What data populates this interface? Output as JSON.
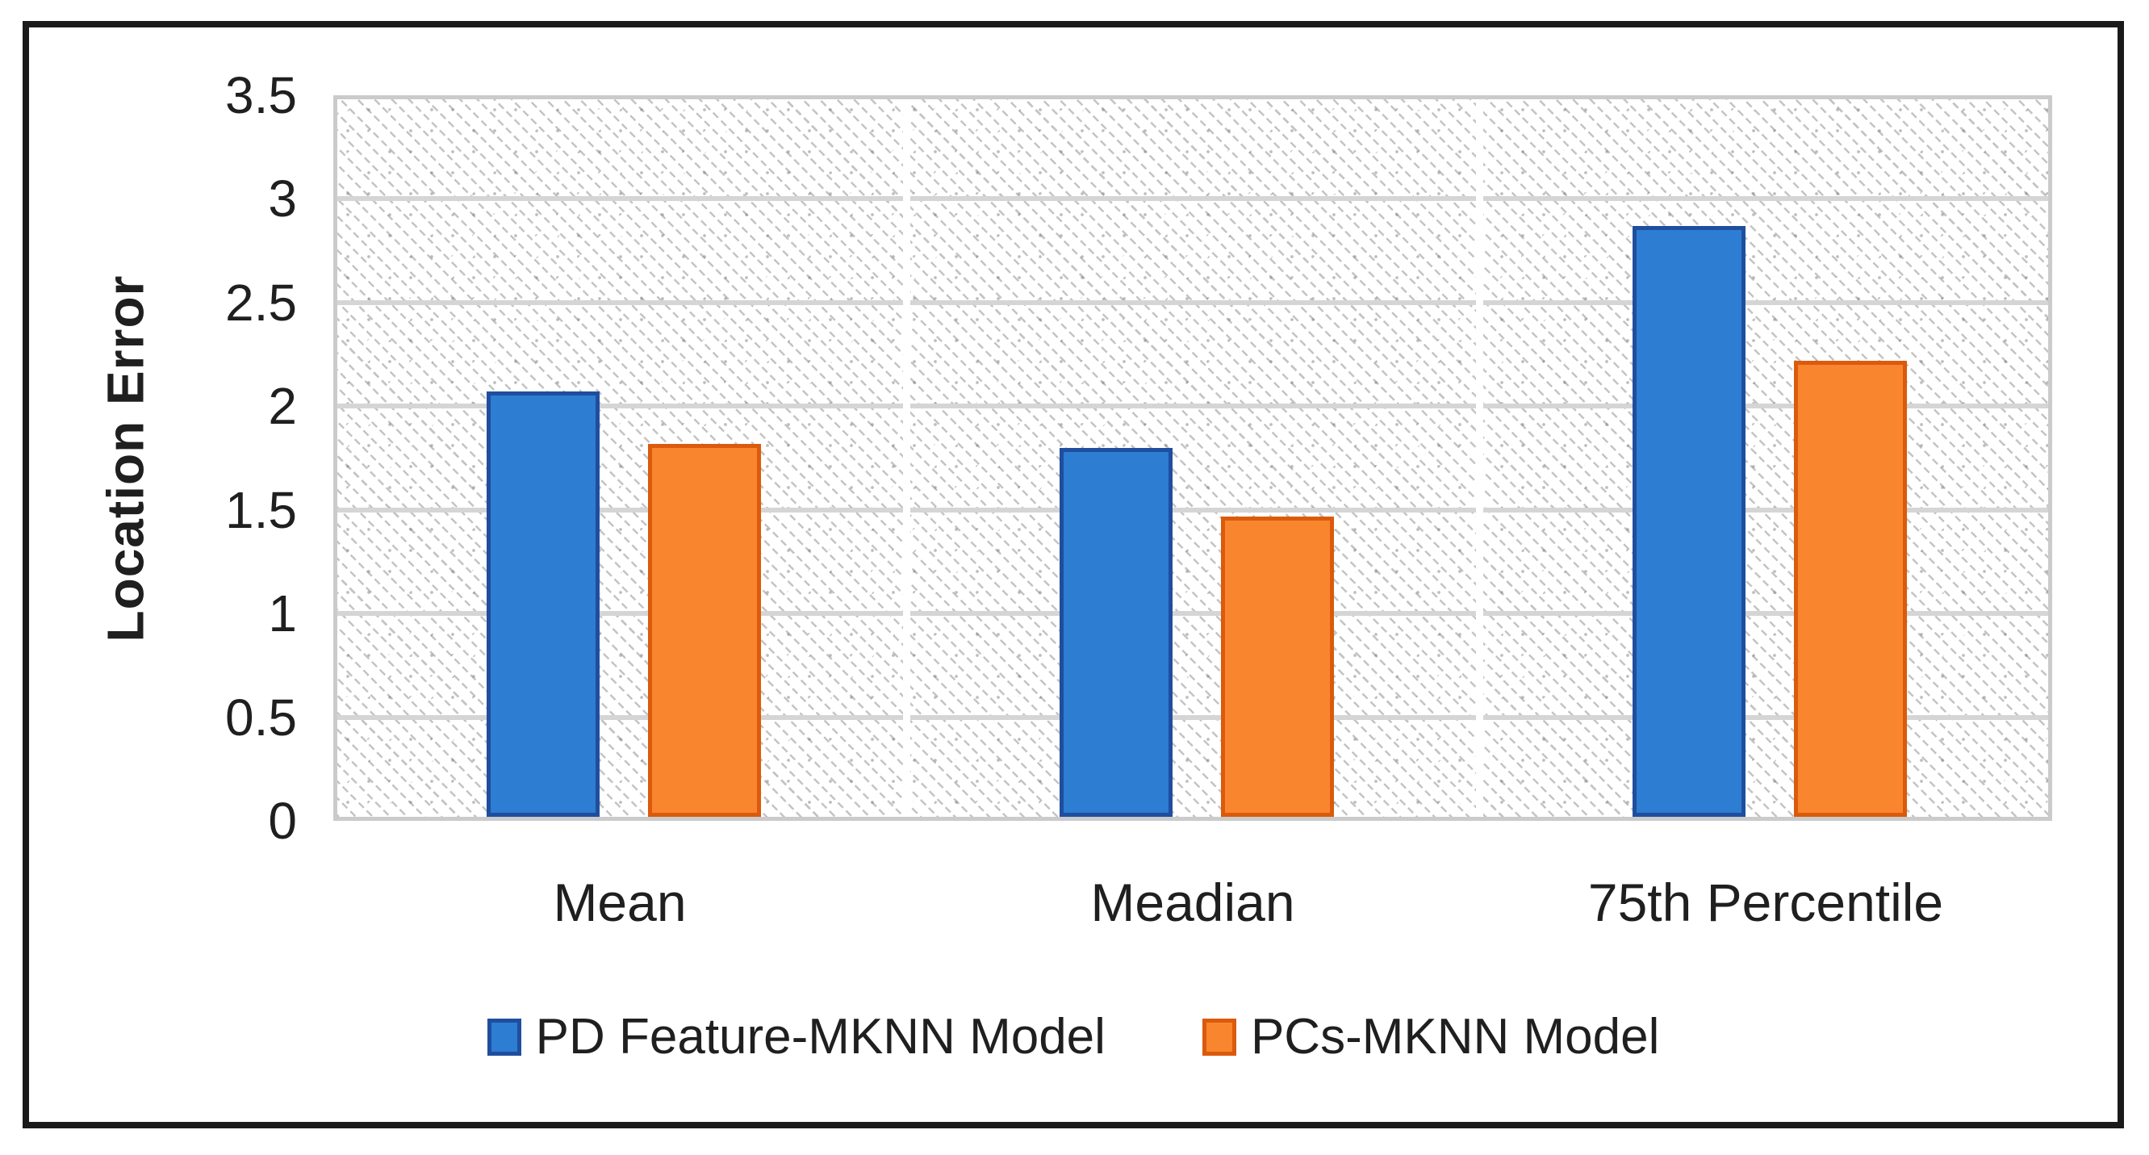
{
  "figure": {
    "kind": "embedded chart figure",
    "background": "#ffffff",
    "frame_border_color": "#1a1a1a"
  },
  "chart_data": {
    "type": "bar",
    "title": "",
    "xlabel": "",
    "ylabel": "Location Error",
    "categories": [
      "Mean",
      "Meadian",
      "75th Percentile"
    ],
    "series": [
      {
        "name": "PD Feature-MKNN Model",
        "values": [
          2.05,
          1.78,
          2.85
        ],
        "fill": "#2D7DD2",
        "border": "#1F4E9E"
      },
      {
        "name": "PCs-MKNN Model",
        "values": [
          1.8,
          1.45,
          2.2
        ],
        "fill": "#F9862E",
        "border": "#DB5A0C"
      }
    ],
    "ylim": [
      0,
      3.5
    ],
    "yticks": [
      0,
      0.5,
      1,
      1.5,
      2,
      2.5,
      3,
      3.5
    ],
    "ytick_labels": [
      "0",
      "0.5",
      "1",
      "1.5",
      "2",
      "2.5",
      "3",
      "3.5"
    ],
    "grid": true,
    "gridline_color": "#D5D5D5",
    "plot_border_color": "#CBCBCB",
    "plot_pattern": "light-downward-diagonal-hatch",
    "category_divider_color": "#ffffff",
    "legend_position": "bottom",
    "text_color": "#1F1F1F"
  }
}
